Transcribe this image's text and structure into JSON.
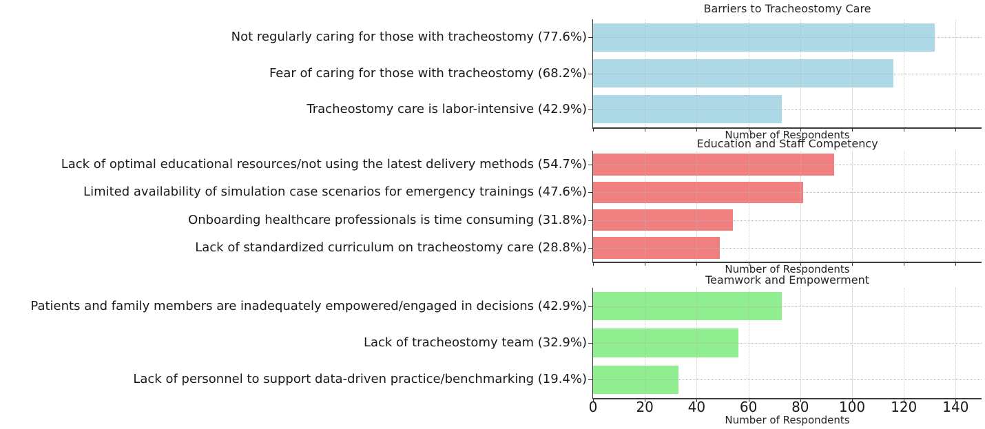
{
  "figure": {
    "background": "#ffffff",
    "text_color": "#1a1a1a",
    "grid_color": "#c9c9c9",
    "axis_color": "#333333"
  },
  "chart_data": [
    {
      "type": "bar",
      "orientation": "horizontal",
      "title": "Barriers to Tracheostomy Care",
      "xlabel": "Number of Respondents",
      "bar_color": "#ADD8E6",
      "xlim": [
        0,
        150
      ],
      "xticks": [
        0,
        20,
        40,
        60,
        80,
        100,
        120,
        140
      ],
      "show_xtick_labels": false,
      "grid": true,
      "categories": [
        "Not regularly caring for those with tracheostomy (77.6%)",
        "Fear of caring for those with tracheostomy (68.2%)",
        "Tracheostomy care is labor-intensive (42.9%)"
      ],
      "values": [
        132,
        116,
        73
      ],
      "percentages": [
        "77.6%",
        "68.2%",
        "42.9%"
      ]
    },
    {
      "type": "bar",
      "orientation": "horizontal",
      "title": "Education and Staff Competency",
      "xlabel": "Number of Respondents",
      "bar_color": "#F08080",
      "xlim": [
        0,
        150
      ],
      "xticks": [
        0,
        20,
        40,
        60,
        80,
        100,
        120,
        140
      ],
      "show_xtick_labels": false,
      "grid": true,
      "categories": [
        "Lack of optimal educational resources/not using the latest delivery methods (54.7%)",
        "Limited availability of simulation case scenarios for emergency trainings (47.6%)",
        "Onboarding healthcare professionals is time consuming (31.8%)",
        "Lack of standardized curriculum on tracheostomy care (28.8%)"
      ],
      "values": [
        93,
        81,
        54,
        49
      ],
      "percentages": [
        "54.7%",
        "47.6%",
        "31.8%",
        "28.8%"
      ]
    },
    {
      "type": "bar",
      "orientation": "horizontal",
      "title": "Teamwork and Empowerment",
      "xlabel": "Number of Respondents",
      "bar_color": "#90EE90",
      "xlim": [
        0,
        150
      ],
      "xticks": [
        0,
        20,
        40,
        60,
        80,
        100,
        120,
        140
      ],
      "show_xtick_labels": true,
      "grid": true,
      "categories": [
        "Patients and family members are inadequately empowered/engaged in decisions (42.9%)",
        "Lack of tracheostomy team (32.9%)",
        "Lack of personnel to support data-driven practice/benchmarking (19.4%)"
      ],
      "values": [
        73,
        56,
        33
      ],
      "percentages": [
        "42.9%",
        "32.9%",
        "19.4%"
      ]
    }
  ]
}
